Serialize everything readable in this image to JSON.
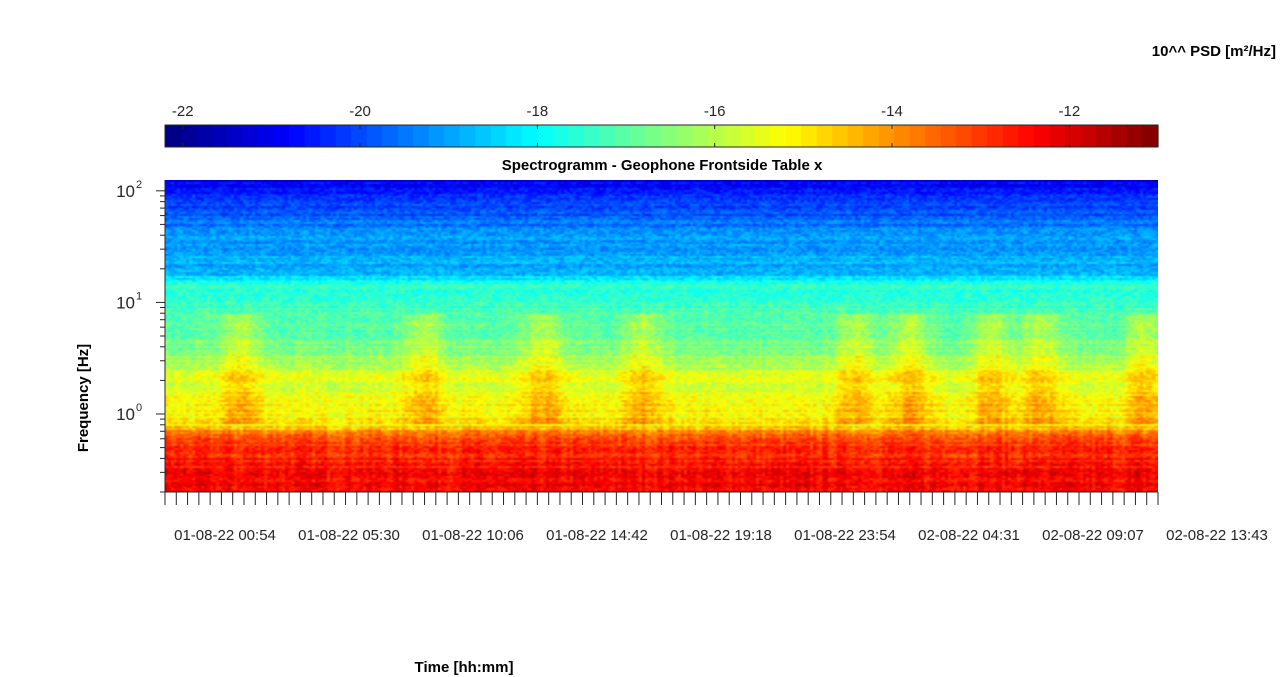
{
  "chart_data": {
    "type": "heatmap",
    "title": "Spectrogramm - Geophone Frontside Table x",
    "xlabel": "Time [hh:mm]",
    "ylabel": "Frequency [Hz]",
    "colorbar_label": "10^^ PSD [m²/Hz]",
    "colorbar_ticks": [
      "-22",
      "-20",
      "-18",
      "-16",
      "-14",
      "-12"
    ],
    "colorbar_range": [
      -22.2,
      -11.0
    ],
    "colormap": "jet",
    "y_scale": "log",
    "y_range_hz": [
      0.2,
      125
    ],
    "y_ticks": [
      {
        "exp": 0,
        "base": "10",
        "sup": "0"
      },
      {
        "exp": 1,
        "base": "10",
        "sup": "1"
      },
      {
        "exp": 2,
        "base": "10",
        "sup": "2"
      }
    ],
    "x_ticks": [
      "01-08-22 00:54",
      "01-08-22 05:30",
      "01-08-22 10:06",
      "01-08-22 14:42",
      "01-08-22 19:18",
      "01-08-22 23:54",
      "02-08-22 04:31",
      "02-08-22 09:07",
      "02-08-22 13:43"
    ],
    "psd_profile": [
      {
        "freq_hz": 0.2,
        "log_psd": -12.3
      },
      {
        "freq_hz": 0.6,
        "log_psd": -13.0
      },
      {
        "freq_hz": 0.8,
        "log_psd": -15.0
      },
      {
        "freq_hz": 2.0,
        "log_psd": -15.6
      },
      {
        "freq_hz": 5.0,
        "log_psd": -17.0
      },
      {
        "freq_hz": 15.0,
        "log_psd": -17.6
      },
      {
        "freq_hz": 18.0,
        "log_psd": -18.8
      },
      {
        "freq_hz": 40.0,
        "log_psd": -19.2
      },
      {
        "freq_hz": 80.0,
        "log_psd": -20.2
      },
      {
        "freq_hz": 125.0,
        "log_psd": -21.0
      }
    ]
  }
}
